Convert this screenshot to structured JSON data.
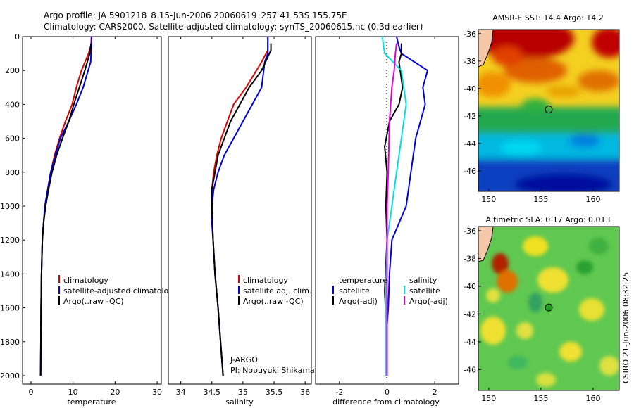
{
  "title_line1": "Argo profile: JA 5901218_8 15-Jun-2006 20060619_257 41.53S 155.75E",
  "title_line2": "Climatology: CARS2000. Satellite-adjusted climatology: synTS_20060615.nc (0.3d earlier)",
  "side_label": "CSIRO 21-Jun-2006 08:32:25",
  "colors": {
    "climatology": "#e00000",
    "satellite": "#0000e0",
    "argo": "#000000",
    "satellite_salinity": "#00e0e0",
    "argo_salinity": "#e000e0"
  },
  "chart_data": [
    {
      "type": "line",
      "xlabel": "temperature",
      "xlim": [
        -2,
        31
      ],
      "xticks": [
        "0",
        "10",
        "20",
        "30"
      ],
      "ylim": [
        2050,
        0
      ],
      "yticks": [
        "0",
        "200",
        "400",
        "600",
        "800",
        "1000",
        "1200",
        "1400",
        "1600",
        "1800",
        "2000"
      ],
      "legend": [
        "climatology",
        "satellite-adjusted climatology",
        "Argo(..raw -QC)"
      ],
      "series": [
        {
          "name": "climatology",
          "color": "climatology",
          "x": [
            14.4,
            14.3,
            13.7,
            12.0,
            10.8,
            9.8,
            8.2,
            6.8,
            5.6,
            4.7,
            4.0,
            3.4,
            3.0,
            2.7,
            2.5,
            2.4,
            2.35,
            2.3
          ],
          "y": [
            0,
            50,
            100,
            200,
            300,
            400,
            500,
            600,
            700,
            800,
            900,
            1000,
            1100,
            1200,
            1400,
            1600,
            1800,
            2000
          ]
        },
        {
          "name": "satellite-adjusted climatology",
          "color": "satellite",
          "x": [
            14.4,
            14.4,
            14.3,
            14.2,
            13.6,
            12.4,
            10.8,
            9.0,
            7.0,
            5.8,
            4.7,
            4.0,
            3.3,
            3.0,
            2.7,
            2.5,
            2.4,
            2.35,
            2.3
          ],
          "y": [
            0,
            50,
            100,
            150,
            200,
            300,
            400,
            500,
            600,
            700,
            800,
            900,
            1000,
            1100,
            1200,
            1400,
            1600,
            1800,
            2000
          ]
        },
        {
          "name": "Argo(..raw -QC)",
          "color": "argo",
          "x": [
            14.3,
            14.2,
            14.0,
            12.8,
            11.5,
            10.2,
            9.0,
            7.5,
            6.1,
            5.0,
            4.2,
            3.5,
            3.0,
            2.7,
            2.5,
            2.4,
            2.35,
            2.3
          ],
          "y": [
            40,
            60,
            100,
            200,
            300,
            400,
            500,
            600,
            700,
            800,
            900,
            1000,
            1100,
            1200,
            1400,
            1600,
            1800,
            2000
          ]
        }
      ]
    },
    {
      "type": "line",
      "xlabel": "salinity",
      "xlim": [
        33.8,
        36.1
      ],
      "xticks": [
        "34",
        "34.5",
        "35",
        "35.5",
        "36"
      ],
      "ylim": [
        2050,
        0
      ],
      "yticks": [],
      "legend": [
        "climatology",
        "satellite adj. clim.",
        "Argo(..raw -QC)"
      ],
      "annotation": [
        "J-ARGO",
        "PI: Nobuyuki Shikama"
      ],
      "series": [
        {
          "name": "climatology",
          "color": "climatology",
          "x": [
            35.4,
            35.4,
            35.3,
            35.05,
            34.85,
            34.75,
            34.65,
            34.58,
            34.53,
            34.5,
            34.5,
            34.52,
            34.55,
            34.6,
            34.64,
            34.68
          ],
          "y": [
            0,
            80,
            150,
            300,
            400,
            500,
            600,
            700,
            800,
            900,
            1000,
            1200,
            1400,
            1600,
            1800,
            2000
          ]
        },
        {
          "name": "satellite adj. clim.",
          "color": "satellite",
          "x": [
            35.4,
            35.4,
            35.35,
            35.3,
            35.0,
            34.85,
            34.7,
            34.6,
            34.53,
            34.5,
            34.5,
            34.52,
            34.55,
            34.6,
            34.64,
            34.68
          ],
          "y": [
            0,
            100,
            150,
            300,
            500,
            600,
            700,
            800,
            900,
            1000,
            1100,
            1200,
            1400,
            1600,
            1800,
            2000
          ]
        },
        {
          "name": "Argo(..raw -QC)",
          "color": "argo",
          "x": [
            35.45,
            35.45,
            35.4,
            35.3,
            35.1,
            34.95,
            34.8,
            34.7,
            34.6,
            34.55,
            34.5,
            34.5,
            34.52,
            34.55,
            34.6,
            34.64,
            34.68
          ],
          "y": [
            40,
            80,
            120,
            200,
            300,
            400,
            500,
            600,
            700,
            800,
            900,
            1000,
            1200,
            1400,
            1600,
            1800,
            2000
          ]
        }
      ]
    },
    {
      "type": "line",
      "xlabel": "difference from climatology",
      "xlim": [
        -3,
        3
      ],
      "xticks": [
        "-2",
        "0",
        "2"
      ],
      "ylim": [
        2050,
        0
      ],
      "yticks": [],
      "legend_titles": [
        "temperature",
        "salinity"
      ],
      "legend": [
        "satellite",
        "Argo(-adj)",
        "satellite",
        "Argo(-adj)"
      ],
      "series": [
        {
          "name": "satellite",
          "color": "satellite",
          "x": [
            0.4,
            0.5,
            0.6,
            1.7,
            1.5,
            1.6,
            1.4,
            1.2,
            1.0,
            0.8,
            0.5,
            0.2,
            0.1,
            0.05,
            0.0,
            0.0,
            0.0
          ],
          "y": [
            0,
            60,
            100,
            200,
            300,
            400,
            500,
            600,
            800,
            1000,
            1100,
            1200,
            1400,
            1600,
            1700,
            1900,
            2000
          ]
        },
        {
          "name": "Argo(-adj)",
          "color": "argo",
          "x": [
            0.6,
            0.6,
            0.5,
            0.55,
            0.65,
            0.5,
            0.1,
            -0.1,
            0.0,
            -0.05,
            0.0,
            -0.1,
            0.0,
            0.0
          ],
          "y": [
            40,
            100,
            150,
            200,
            300,
            400,
            500,
            650,
            800,
            1000,
            1200,
            1500,
            1800,
            2000
          ]
        },
        {
          "name": "satellite",
          "color": "satellite_salinity",
          "x": [
            -0.2,
            -0.1,
            0.6,
            0.8,
            0.6,
            0.4,
            0.2,
            0.0,
            -0.05,
            -0.05,
            -0.05
          ],
          "y": [
            0,
            100,
            200,
            400,
            600,
            800,
            1000,
            1200,
            1500,
            1800,
            2000
          ]
        },
        {
          "name": "Argo(-adj)",
          "color": "argo_salinity",
          "x": [
            0.4,
            0.35,
            0.3,
            0.2,
            0.1,
            0.05,
            0.0,
            0.0,
            0.0,
            0.0
          ],
          "y": [
            40,
            100,
            200,
            300,
            500,
            800,
            1000,
            1300,
            1600,
            2000
          ]
        }
      ]
    },
    {
      "type": "heatmap",
      "title": "AMSR-E SST: 14.4 Argo: 14.2",
      "xlim": [
        149,
        162.5
      ],
      "ylim": [
        -47.5,
        -35.7
      ],
      "xticks": [
        "150",
        "155",
        "160"
      ],
      "yticks": [
        "-36",
        "-38",
        "-40",
        "-42",
        "-44",
        "-46"
      ],
      "marker": {
        "lon": 155.75,
        "lat": -41.53
      }
    },
    {
      "type": "heatmap",
      "title": "Altimetric SLA: 0.17 Argo: 0.013",
      "xlim": [
        149,
        162.5
      ],
      "ylim": [
        -47.5,
        -35.7
      ],
      "xticks": [
        "150",
        "155",
        "160"
      ],
      "yticks": [
        "-36",
        "-38",
        "-40",
        "-42",
        "-44",
        "-46"
      ],
      "marker": {
        "lon": 155.75,
        "lat": -41.53
      }
    }
  ]
}
